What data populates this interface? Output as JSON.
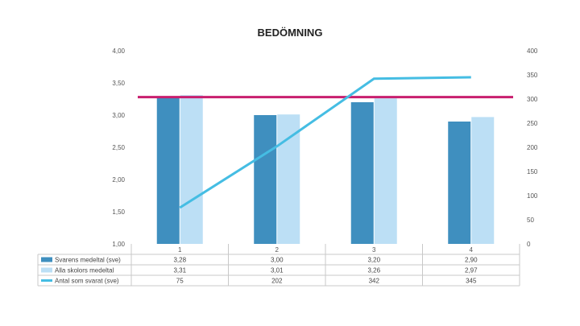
{
  "chart_data": {
    "type": "bar",
    "title": "BEDÖMNING",
    "categories": [
      "1",
      "2",
      "3",
      "4"
    ],
    "series": [
      {
        "name": "Svarens medeltal (sve)",
        "kind": "bar",
        "axis": "left",
        "color": "#3f8fbf",
        "values": [
          3.28,
          3.0,
          3.2,
          2.9
        ],
        "labels": [
          "3,28",
          "3,00",
          "3,20",
          "2,90"
        ]
      },
      {
        "name": "Alla skolors medeltal",
        "kind": "bar",
        "axis": "left",
        "color": "#bcdff5",
        "values": [
          3.31,
          3.01,
          3.26,
          2.97
        ],
        "labels": [
          "3,31",
          "3,01",
          "3,26",
          "2,97"
        ]
      },
      {
        "name": "Antal som svarat (sve)",
        "kind": "line",
        "axis": "right",
        "color": "#45bde3",
        "values": [
          75,
          202,
          342,
          345
        ],
        "labels": [
          "75",
          "202",
          "342",
          "345"
        ]
      }
    ],
    "reference_line": {
      "value": 3.28,
      "color": "#c81e6e"
    },
    "y_left": {
      "range": [
        1.0,
        4.0
      ],
      "ticks": [
        "1,00",
        "1,50",
        "2,00",
        "2,50",
        "3,00",
        "3,50",
        "4,00"
      ]
    },
    "y_right": {
      "range": [
        0,
        400
      ],
      "ticks": [
        "0",
        "50",
        "100",
        "150",
        "200",
        "250",
        "300",
        "350",
        "400"
      ]
    },
    "grid": false,
    "legend": "data-table"
  }
}
